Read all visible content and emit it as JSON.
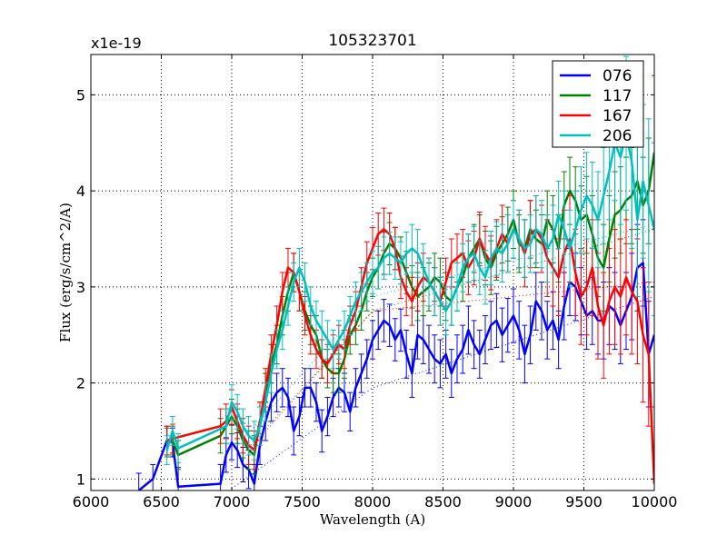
{
  "chart_data": {
    "type": "line",
    "title": "105323701",
    "xlabel": "Wavelength (A)",
    "ylabel": "Flux (erg/s/cm^2/A)",
    "y_offset_label": "x1e-19",
    "xlim": [
      6000,
      10000
    ],
    "ylim": [
      0.88,
      5.42
    ],
    "grid": true,
    "legend_position": "top-right",
    "x_ticks": [
      6000,
      6500,
      7000,
      7500,
      8000,
      8500,
      9000,
      9500,
      10000
    ],
    "x_tick_labels": [
      "6000",
      "6500",
      "7000",
      "7500",
      "8000",
      "8500",
      "9000",
      "9500",
      "10000"
    ],
    "y_ticks": [
      1,
      2,
      3,
      4,
      5
    ],
    "y_tick_labels": [
      "1",
      "2",
      "3",
      "4",
      "5"
    ],
    "series": [
      {
        "name": "076",
        "color": "#0000ff",
        "x": [
          6340,
          6440,
          6540,
          6580,
          6620,
          6920,
          6960,
          7000,
          7040,
          7080,
          7120,
          7160,
          7200,
          7240,
          7280,
          7320,
          7360,
          7400,
          7440,
          7480,
          7520,
          7560,
          7600,
          7640,
          7680,
          7720,
          7760,
          7800,
          7840,
          7880,
          7920,
          7960,
          8000,
          8040,
          8080,
          8120,
          8160,
          8200,
          8240,
          8280,
          8320,
          8360,
          8400,
          8440,
          8480,
          8520,
          8560,
          8600,
          8640,
          8680,
          8720,
          8760,
          8800,
          8840,
          8880,
          8920,
          8960,
          9000,
          9040,
          9080,
          9120,
          9160,
          9200,
          9240,
          9280,
          9320,
          9360,
          9400,
          9440,
          9480,
          9520,
          9560,
          9600,
          9640,
          9680,
          9720,
          9760,
          9800,
          9840,
          9880,
          9920,
          9960,
          10000
        ],
        "y": [
          0.88,
          1.0,
          1.4,
          1.38,
          0.92,
          0.95,
          1.25,
          1.38,
          1.3,
          1.15,
          1.1,
          0.95,
          1.35,
          1.6,
          1.8,
          1.9,
          1.95,
          1.85,
          1.5,
          1.65,
          1.95,
          1.95,
          1.8,
          1.5,
          1.65,
          1.85,
          1.95,
          1.9,
          1.7,
          1.95,
          2.1,
          2.25,
          2.45,
          2.55,
          2.65,
          2.6,
          2.45,
          2.55,
          2.3,
          2.1,
          2.5,
          2.45,
          2.35,
          2.25,
          2.2,
          2.3,
          2.1,
          2.25,
          2.35,
          2.55,
          2.4,
          2.3,
          2.45,
          2.6,
          2.65,
          2.5,
          2.6,
          2.7,
          2.55,
          2.3,
          2.5,
          2.85,
          2.75,
          2.55,
          2.65,
          2.45,
          2.8,
          3.05,
          3.0,
          2.85,
          2.7,
          2.75,
          2.65,
          2.65,
          2.8,
          2.75,
          2.6,
          2.75,
          2.9,
          3.2,
          3.25,
          2.3,
          2.5
        ],
        "error": [
          0.18,
          0.15,
          0.15,
          0.15,
          0.2,
          0.2,
          0.18,
          0.18,
          0.18,
          0.18,
          0.2,
          0.2,
          0.2,
          0.2,
          0.2,
          0.2,
          0.2,
          0.2,
          0.25,
          0.2,
          0.2,
          0.2,
          0.2,
          0.22,
          0.2,
          0.2,
          0.2,
          0.2,
          0.2,
          0.2,
          0.2,
          0.2,
          0.2,
          0.2,
          0.22,
          0.22,
          0.22,
          0.22,
          0.25,
          0.25,
          0.25,
          0.25,
          0.25,
          0.25,
          0.25,
          0.25,
          0.25,
          0.25,
          0.25,
          0.25,
          0.25,
          0.25,
          0.25,
          0.25,
          0.28,
          0.28,
          0.28,
          0.28,
          0.3,
          0.3,
          0.3,
          0.3,
          0.3,
          0.3,
          0.3,
          0.3,
          0.35,
          0.35,
          0.35,
          0.35,
          0.35,
          0.35,
          0.35,
          0.4,
          0.4,
          0.4,
          0.4,
          0.4,
          0.45,
          0.45,
          0.45,
          0.55,
          0.5
        ],
        "fit_x": [
          7000,
          8000,
          10000
        ],
        "fit_y": [
          0.9,
          1.95,
          2.9
        ]
      },
      {
        "name": "117",
        "color": "#008000",
        "x": [
          6540,
          6580,
          6620,
          6920,
          6960,
          7000,
          7040,
          7080,
          7120,
          7160,
          7200,
          7240,
          7280,
          7320,
          7360,
          7400,
          7440,
          7480,
          7520,
          7560,
          7600,
          7640,
          7680,
          7720,
          7760,
          7800,
          7840,
          7880,
          7920,
          7960,
          8000,
          8040,
          8080,
          8120,
          8160,
          8200,
          8240,
          8280,
          8320,
          8360,
          8400,
          8440,
          8480,
          8520,
          8560,
          8600,
          8640,
          8680,
          8720,
          8760,
          8800,
          8840,
          8880,
          8920,
          8960,
          9000,
          9040,
          9080,
          9120,
          9160,
          9200,
          9240,
          9280,
          9320,
          9360,
          9400,
          9440,
          9480,
          9520,
          9560,
          9600,
          9640,
          9680,
          9720,
          9760,
          9800,
          9840,
          9880,
          9920,
          9960,
          10000
        ],
        "y": [
          1.38,
          1.4,
          1.25,
          1.45,
          1.55,
          1.65,
          1.55,
          1.4,
          1.3,
          1.25,
          1.6,
          1.9,
          2.2,
          2.4,
          2.7,
          2.95,
          3.15,
          2.95,
          2.75,
          2.6,
          2.5,
          2.25,
          2.15,
          2.1,
          2.1,
          2.25,
          2.5,
          2.6,
          2.75,
          2.95,
          3.1,
          3.2,
          3.35,
          3.45,
          3.4,
          3.3,
          3.15,
          3.0,
          2.9,
          2.95,
          3.0,
          3.1,
          3.05,
          2.9,
          2.85,
          3.0,
          3.1,
          3.3,
          3.4,
          3.5,
          3.3,
          3.2,
          3.35,
          3.45,
          3.55,
          3.7,
          3.45,
          3.4,
          3.6,
          3.5,
          3.45,
          3.7,
          3.6,
          3.4,
          3.85,
          4.0,
          3.9,
          3.7,
          3.75,
          3.55,
          3.3,
          3.2,
          3.5,
          3.75,
          3.8,
          3.9,
          3.95,
          4.1,
          3.85,
          4.0,
          4.4
        ],
        "error": [
          0.15,
          0.15,
          0.15,
          0.18,
          0.18,
          0.18,
          0.18,
          0.18,
          0.2,
          0.2,
          0.2,
          0.2,
          0.2,
          0.2,
          0.2,
          0.2,
          0.2,
          0.2,
          0.2,
          0.2,
          0.2,
          0.2,
          0.2,
          0.2,
          0.2,
          0.2,
          0.2,
          0.2,
          0.2,
          0.2,
          0.2,
          0.22,
          0.22,
          0.22,
          0.22,
          0.22,
          0.22,
          0.22,
          0.25,
          0.25,
          0.25,
          0.25,
          0.25,
          0.25,
          0.25,
          0.25,
          0.25,
          0.25,
          0.25,
          0.25,
          0.28,
          0.28,
          0.28,
          0.28,
          0.28,
          0.3,
          0.3,
          0.3,
          0.3,
          0.3,
          0.3,
          0.3,
          0.35,
          0.35,
          0.35,
          0.35,
          0.35,
          0.35,
          0.4,
          0.4,
          0.4,
          0.45,
          0.45,
          0.45,
          0.45,
          0.45,
          0.5,
          0.5,
          0.5,
          0.55,
          0.8
        ],
        "fit_x": [
          7100,
          8000,
          10000
        ],
        "fit_y": [
          1.3,
          2.75,
          3.6
        ]
      },
      {
        "name": "167",
        "color": "#ff0000",
        "x": [
          6540,
          6580,
          6920,
          6960,
          7000,
          7040,
          7080,
          7120,
          7160,
          7200,
          7240,
          7280,
          7320,
          7360,
          7400,
          7440,
          7480,
          7520,
          7560,
          7600,
          7640,
          7680,
          7720,
          7760,
          7800,
          7840,
          7880,
          7920,
          7960,
          8000,
          8040,
          8080,
          8120,
          8160,
          8200,
          8240,
          8280,
          8320,
          8360,
          8400,
          8440,
          8480,
          8520,
          8560,
          8600,
          8640,
          8680,
          8720,
          8760,
          8800,
          8840,
          8880,
          8920,
          8960,
          9000,
          9040,
          9080,
          9120,
          9160,
          9200,
          9240,
          9280,
          9320,
          9360,
          9400,
          9440,
          9480,
          9520,
          9560,
          9600,
          9640,
          9680,
          9720,
          9760,
          9800,
          9840,
          9880,
          9920,
          9960,
          10000
        ],
        "y": [
          1.4,
          1.42,
          1.55,
          1.6,
          1.75,
          1.6,
          1.45,
          1.35,
          1.3,
          1.6,
          1.95,
          2.3,
          2.6,
          2.95,
          3.2,
          3.15,
          2.95,
          2.7,
          2.5,
          2.35,
          2.25,
          2.2,
          2.3,
          2.4,
          2.35,
          2.6,
          2.75,
          3.0,
          3.25,
          3.4,
          3.55,
          3.6,
          3.55,
          3.4,
          3.1,
          2.95,
          2.85,
          3.0,
          3.1,
          3.05,
          2.95,
          2.85,
          3.05,
          3.25,
          3.3,
          3.35,
          3.2,
          3.3,
          3.5,
          3.35,
          3.25,
          3.4,
          3.55,
          3.45,
          3.6,
          3.5,
          3.35,
          3.55,
          3.6,
          3.5,
          3.3,
          3.2,
          3.1,
          3.35,
          3.5,
          3.15,
          2.9,
          3.0,
          3.2,
          2.8,
          2.6,
          2.85,
          3.0,
          2.9,
          3.1,
          2.95,
          2.85,
          2.5,
          2.3,
          0.95
        ],
        "error": [
          0.15,
          0.15,
          0.18,
          0.18,
          0.18,
          0.18,
          0.18,
          0.2,
          0.2,
          0.2,
          0.2,
          0.2,
          0.2,
          0.2,
          0.2,
          0.2,
          0.2,
          0.2,
          0.2,
          0.2,
          0.2,
          0.2,
          0.2,
          0.2,
          0.2,
          0.2,
          0.2,
          0.2,
          0.22,
          0.22,
          0.22,
          0.22,
          0.22,
          0.22,
          0.22,
          0.25,
          0.25,
          0.25,
          0.25,
          0.25,
          0.25,
          0.25,
          0.25,
          0.25,
          0.25,
          0.25,
          0.28,
          0.28,
          0.28,
          0.28,
          0.28,
          0.3,
          0.3,
          0.3,
          0.3,
          0.3,
          0.35,
          0.35,
          0.35,
          0.35,
          0.4,
          0.4,
          0.4,
          0.45,
          0.45,
          0.45,
          0.5,
          0.5,
          0.5,
          0.55,
          0.55,
          0.55,
          0.6,
          0.6,
          0.6,
          0.65,
          0.65,
          0.7,
          0.75,
          0.8
        ],
        "fit_x": [
          7150,
          8000,
          10000
        ],
        "fit_y": [
          1.35,
          2.75,
          3.05
        ]
      },
      {
        "name": "206",
        "color": "#00bfbf",
        "x": [
          6540,
          6580,
          6620,
          6960,
          7000,
          7040,
          7080,
          7120,
          7160,
          7200,
          7240,
          7280,
          7320,
          7360,
          7400,
          7440,
          7480,
          7520,
          7560,
          7600,
          7640,
          7680,
          7720,
          7760,
          7800,
          7840,
          7880,
          7920,
          7960,
          8000,
          8040,
          8080,
          8120,
          8160,
          8200,
          8240,
          8280,
          8320,
          8360,
          8400,
          8440,
          8480,
          8520,
          8560,
          8600,
          8640,
          8680,
          8720,
          8760,
          8800,
          8840,
          8880,
          8920,
          8960,
          9000,
          9040,
          9080,
          9120,
          9160,
          9200,
          9240,
          9280,
          9320,
          9360,
          9400,
          9440,
          9480,
          9520,
          9560,
          9600,
          9640,
          9680,
          9720,
          9760,
          9800,
          9840,
          9880,
          9920,
          9960,
          10000
        ],
        "y": [
          1.3,
          1.5,
          1.32,
          1.55,
          1.8,
          1.7,
          1.55,
          1.45,
          1.4,
          1.55,
          1.8,
          2.1,
          2.35,
          2.55,
          2.8,
          3.05,
          3.2,
          3.05,
          2.8,
          2.65,
          2.55,
          2.45,
          2.35,
          2.45,
          2.55,
          2.7,
          2.85,
          2.95,
          3.05,
          3.15,
          3.2,
          3.3,
          3.35,
          3.3,
          3.25,
          3.35,
          3.4,
          3.35,
          3.2,
          3.05,
          2.95,
          2.85,
          2.75,
          2.85,
          3.0,
          3.2,
          3.3,
          3.35,
          3.2,
          3.1,
          3.3,
          3.4,
          3.35,
          3.45,
          3.6,
          3.5,
          3.4,
          3.45,
          3.6,
          3.55,
          3.4,
          3.5,
          3.75,
          3.6,
          3.4,
          3.6,
          3.8,
          3.95,
          3.85,
          3.7,
          3.95,
          4.2,
          4.5,
          4.35,
          4.6,
          4.3,
          3.7,
          4.1,
          3.85,
          3.6
        ],
        "error": [
          0.15,
          0.15,
          0.15,
          0.18,
          0.18,
          0.18,
          0.18,
          0.2,
          0.2,
          0.2,
          0.2,
          0.2,
          0.2,
          0.2,
          0.2,
          0.2,
          0.2,
          0.2,
          0.2,
          0.2,
          0.2,
          0.2,
          0.2,
          0.2,
          0.2,
          0.2,
          0.2,
          0.2,
          0.2,
          0.22,
          0.22,
          0.22,
          0.22,
          0.22,
          0.22,
          0.22,
          0.25,
          0.25,
          0.25,
          0.25,
          0.25,
          0.25,
          0.25,
          0.25,
          0.25,
          0.25,
          0.25,
          0.28,
          0.28,
          0.28,
          0.28,
          0.28,
          0.3,
          0.3,
          0.3,
          0.3,
          0.3,
          0.3,
          0.35,
          0.35,
          0.35,
          0.35,
          0.35,
          0.4,
          0.4,
          0.4,
          0.45,
          0.45,
          0.45,
          0.5,
          0.5,
          0.5,
          0.6,
          0.7,
          0.8,
          0.9,
          0.8,
          0.8,
          0.9,
          0.9
        ],
        "fit_x": [
          7100,
          8000,
          10000
        ],
        "fit_y": [
          1.45,
          2.9,
          3.65
        ]
      }
    ]
  }
}
